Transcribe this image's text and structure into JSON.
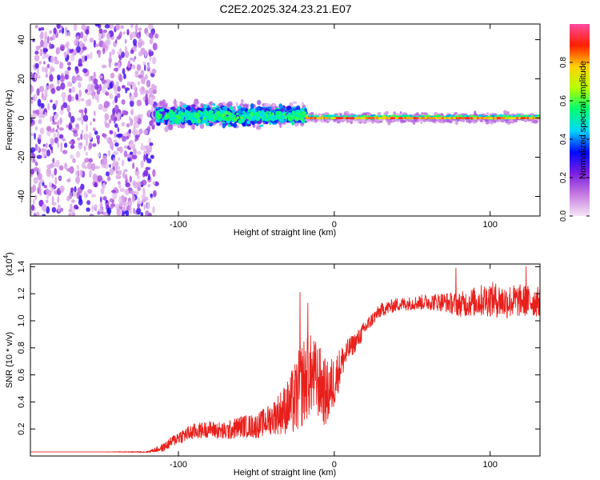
{
  "title": "C2E2.2025.324.23.21.E07",
  "chart_data": [
    {
      "type": "heatmap",
      "xlabel": "Height of straight line (km)",
      "ylabel": "Frequency (Hz)",
      "xlim": [
        -195,
        132
      ],
      "ylim": [
        -50,
        48
      ],
      "x_ticks": [
        -100,
        0,
        100
      ],
      "x_tick_labels": [
        "-100",
        "0",
        "100"
      ],
      "y_ticks": [
        -40,
        -20,
        0,
        20,
        40
      ],
      "y_tick_labels": [
        "-40",
        "-20",
        "0",
        "20",
        "40"
      ],
      "colorbar": {
        "label": "Normalized spectral amplitude",
        "range": [
          0,
          1
        ],
        "ticks": [
          0.0,
          0.2,
          0.4,
          0.6,
          0.8
        ],
        "tick_labels": [
          "0.0",
          "0.2",
          "0.4",
          "0.6",
          "0.8"
        ],
        "colors": [
          "#f4e6f6",
          "#c77ce0",
          "#7a1fe0",
          "#0008ff",
          "#00d6ff",
          "#00ff70",
          "#b6ff00",
          "#ffd200",
          "#ff2000",
          "#ff4aa0"
        ]
      },
      "regions": [
        {
          "x_range": [
            -195,
            -114
          ],
          "freq_spread": 48,
          "amplitude": 0.15,
          "description_level": "scattered noise"
        },
        {
          "x_range": [
            -114,
            -18
          ],
          "freq_spread": 6,
          "amplitude": 0.4,
          "description_level": "broad band"
        },
        {
          "x_range": [
            -18,
            132
          ],
          "freq_spread": 2,
          "amplitude": 0.85,
          "description_level": "narrow line"
        }
      ]
    },
    {
      "type": "line",
      "xlabel": "Height of straight line (km)",
      "ylabel": "SNR (10 * v/v)",
      "y_multiplier": "(x10",
      "y_multiplier_exp": "4",
      "y_multiplier_close": ")",
      "xlim": [
        -195,
        132
      ],
      "ylim": [
        0,
        1.42
      ],
      "x_ticks": [
        -100,
        0,
        100
      ],
      "x_tick_labels": [
        "-100",
        "0",
        "100"
      ],
      "y_ticks": [
        0.2,
        0.4,
        0.6,
        0.8,
        1.0,
        1.2,
        1.4
      ],
      "y_tick_labels": [
        "0.2",
        "0.4",
        "0.6",
        "0.8",
        "1.0",
        "1.2",
        "1.4"
      ],
      "color": "#e8201c",
      "series": [
        {
          "name": "SNR",
          "x": [
            -195,
            -150,
            -120,
            -110,
            -100,
            -90,
            -80,
            -70,
            -60,
            -50,
            -40,
            -30,
            -25,
            -20,
            -15,
            -10,
            -5,
            0,
            5,
            10,
            15,
            20,
            25,
            30,
            40,
            50,
            60,
            70,
            80,
            90,
            100,
            110,
            120,
            132
          ],
          "y": [
            0.03,
            0.03,
            0.03,
            0.06,
            0.14,
            0.18,
            0.2,
            0.18,
            0.22,
            0.22,
            0.28,
            0.36,
            0.42,
            0.55,
            0.6,
            0.55,
            0.45,
            0.55,
            0.7,
            0.8,
            0.86,
            0.95,
            1.02,
            1.08,
            1.12,
            1.13,
            1.14,
            1.14,
            1.12,
            1.14,
            1.16,
            1.14,
            1.15,
            1.14
          ],
          "noise": [
            0,
            0,
            0.005,
            0.03,
            0.05,
            0.06,
            0.06,
            0.07,
            0.08,
            0.09,
            0.12,
            0.2,
            0.28,
            0.33,
            0.3,
            0.28,
            0.25,
            0.2,
            0.12,
            0.08,
            0.07,
            0.06,
            0.05,
            0.05,
            0.05,
            0.05,
            0.06,
            0.07,
            0.09,
            0.11,
            0.13,
            0.13,
            0.12,
            0.11
          ]
        }
      ],
      "annotations": [
        {
          "x": -22,
          "peak": 1.21
        },
        {
          "x": -17,
          "peak": 1.13
        },
        {
          "x": 78,
          "peak": 1.39
        },
        {
          "x": 123,
          "peak": 1.4
        }
      ]
    }
  ]
}
